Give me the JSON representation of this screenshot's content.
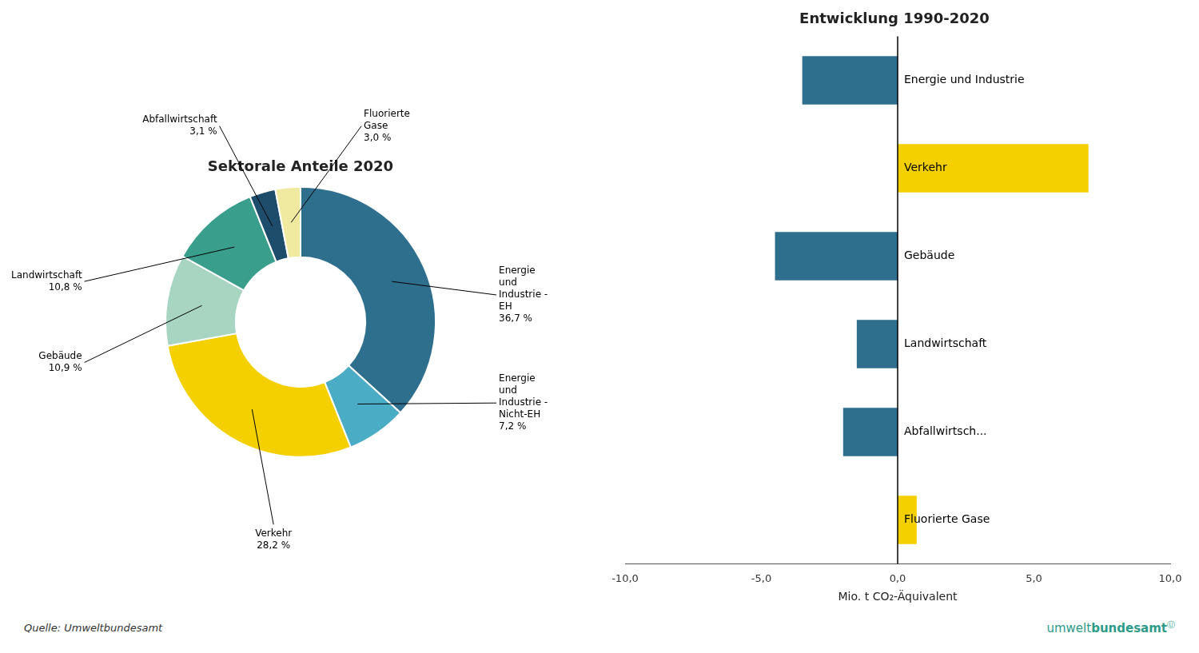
{
  "chart_data": [
    {
      "type": "doughnut",
      "title": "Sektorale Anteile 2020",
      "categories": [
        "Energie\nund\nIndustrie -\nEH",
        "Energie\nund\nIndustrie -\nNicht-EH",
        "Verkehr",
        "Gebäude",
        "Landwirtschaft",
        "Abfallwirtschaft",
        "Fluorierte\nGase"
      ],
      "values": [
        36.7,
        7.2,
        28.2,
        10.9,
        10.8,
        3.1,
        3.0
      ],
      "value_labels": [
        "36,7 %",
        "7,2 %",
        "28,2 %",
        "10,9 %",
        "10,8 %",
        "3,1 %",
        "3,0 %"
      ],
      "colors": [
        "#2E6F8E",
        "#4BACC6",
        "#F5D000",
        "#A8D4C2",
        "#3A9E8C",
        "#1E4D6B",
        "#F0EAA0"
      ],
      "data_labels": true
    },
    {
      "type": "bar",
      "orientation": "horizontal",
      "title": "Entwicklung 1990-2020",
      "categories": [
        "Fluorierte Gase",
        "Abfallwirtsch...",
        "Landwirtschaft",
        "Gebäude",
        "Verkehr",
        "Energie und Industrie"
      ],
      "values": [
        0.7,
        -2.0,
        -1.5,
        -4.5,
        7.0,
        -3.5
      ],
      "colors": [
        "#F5D000",
        "#2E6F8E",
        "#2E6F8E",
        "#2E6F8E",
        "#F5D000",
        "#2E6F8E"
      ],
      "xlabel": "Mio. t CO₂-Äquivalent",
      "xlim": [
        -10,
        10
      ],
      "xticks": [
        {
          "value": -10,
          "label": "-10,0"
        },
        {
          "value": -5,
          "label": "-5,0"
        },
        {
          "value": 0,
          "label": "0,0"
        },
        {
          "value": 5,
          "label": "5,0"
        },
        {
          "value": 10,
          "label": "10,0"
        }
      ],
      "grid": false,
      "tick_labels": "x",
      "annotations": [
        "Quelle: Umweltbundesamt",
        "umwelt",
        "bundesamt",
        "Ⓤ"
      ]
    }
  ]
}
